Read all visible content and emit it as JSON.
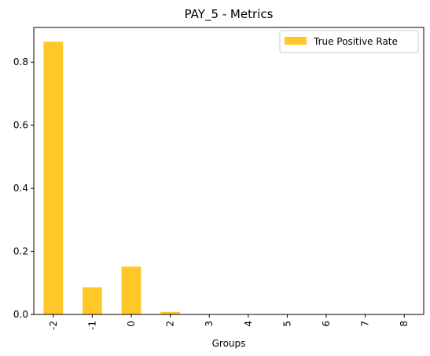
{
  "chart_data": {
    "type": "bar",
    "title": "PAY_5 - Metrics",
    "xlabel": "Groups",
    "ylabel": "",
    "categories": [
      "-2",
      "-1",
      "0",
      "2",
      "3",
      "4",
      "5",
      "6",
      "7",
      "8"
    ],
    "series": [
      {
        "name": "True Positive Rate",
        "color": "#ffc828",
        "values": [
          0.865,
          0.086,
          0.152,
          0.008,
          0,
          0,
          0,
          0,
          0,
          0
        ]
      }
    ],
    "ylim": [
      0,
      0.91
    ],
    "yticks": [
      0.0,
      0.2,
      0.4,
      0.6,
      0.8
    ],
    "ytick_labels": [
      "0.0",
      "0.2",
      "0.4",
      "0.6",
      "0.8"
    ],
    "grid": false,
    "legend_position": "top-right"
  }
}
